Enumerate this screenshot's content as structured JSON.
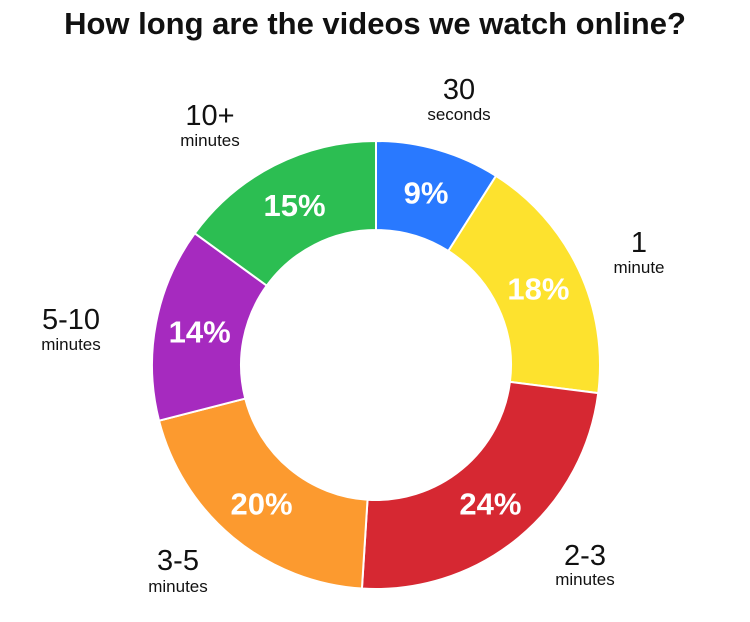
{
  "chart_data": {
    "type": "pie",
    "title": "How long are the videos we watch online?",
    "style": "donut",
    "slices": [
      {
        "label": "30",
        "sublabel": "seconds",
        "value": 9,
        "value_label": "9%",
        "color": "#2979FF"
      },
      {
        "label": "1",
        "sublabel": "minute",
        "value": 18,
        "value_label": "18%",
        "color": "#FDE22E"
      },
      {
        "label": "2-3",
        "sublabel": "minutes",
        "value": 24,
        "value_label": "24%",
        "color": "#D62832"
      },
      {
        "label": "3-5",
        "sublabel": "minutes",
        "value": 20,
        "value_label": "20%",
        "color": "#FC9A2F"
      },
      {
        "label": "5-10",
        "sublabel": "minutes",
        "value": 14,
        "value_label": "14%",
        "color": "#A62ABF"
      },
      {
        "label": "10+",
        "sublabel": "minutes",
        "value": 15,
        "value_label": "15%",
        "color": "#2CBE52"
      }
    ]
  }
}
